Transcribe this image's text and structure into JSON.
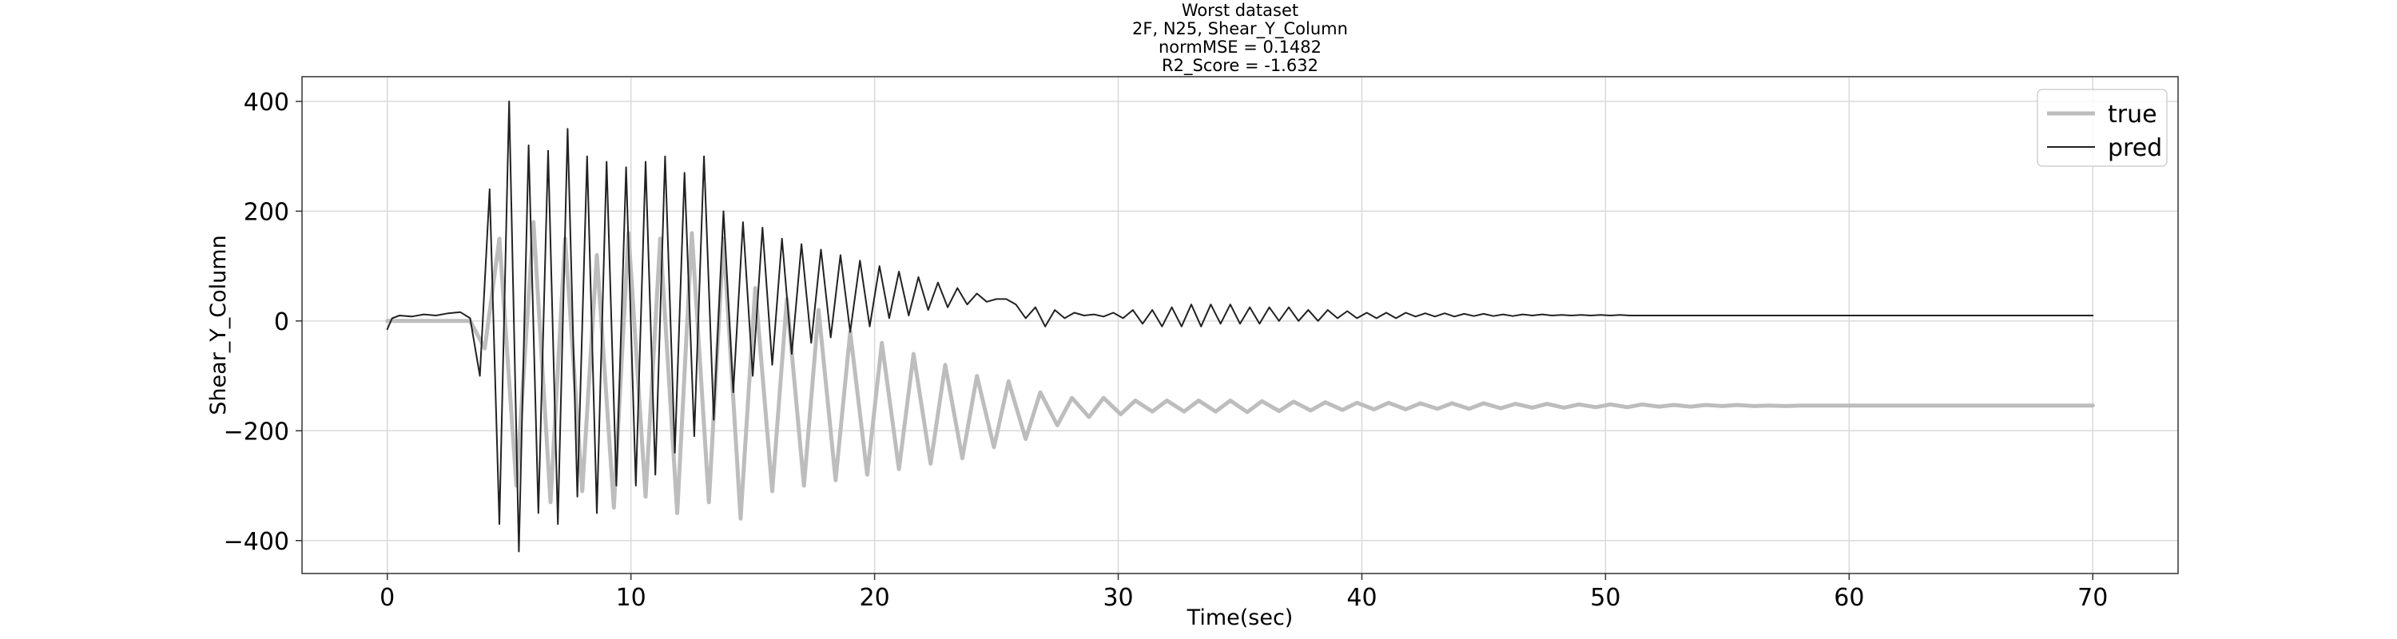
{
  "chart_data": {
    "type": "line",
    "title_lines": [
      "Worst dataset",
      "2F, N25, Shear_Y_Column",
      "normMSE = 0.1482",
      "R2_Score = -1.632"
    ],
    "xlabel": "Time(sec)",
    "ylabel": "Shear_Y_Column",
    "xlim": [
      -3.5,
      73.5
    ],
    "ylim": [
      -460,
      445
    ],
    "xticks": [
      0,
      10,
      20,
      30,
      40,
      50,
      60,
      70
    ],
    "yticks": [
      -400,
      -200,
      0,
      200,
      400
    ],
    "ytick_labels": [
      "−400",
      "−200",
      "0",
      "200",
      "400"
    ],
    "grid": true,
    "legend_position": "top-right",
    "series": [
      {
        "name": "true",
        "color": "#bdbdbd",
        "x": [
          0,
          1,
          2,
          3,
          3.4,
          4.0,
          4.6,
          5.3,
          6.0,
          6.7,
          7.3,
          8.0,
          8.6,
          9.3,
          9.9,
          10.6,
          11.2,
          11.9,
          12.5,
          13.2,
          13.8,
          14.5,
          15.1,
          15.8,
          16.4,
          17.1,
          17.7,
          18.4,
          19.0,
          19.7,
          20.3,
          21.0,
          21.6,
          22.3,
          22.9,
          23.6,
          24.2,
          24.9,
          25.5,
          26.2,
          26.8,
          27.5,
          28.1,
          28.8,
          29.4,
          30.1,
          30.7,
          31.4,
          32.0,
          32.7,
          33.3,
          34.0,
          34.6,
          35.3,
          35.9,
          36.6,
          37.2,
          37.9,
          38.5,
          39.2,
          39.8,
          40.5,
          41.1,
          41.8,
          42.4,
          43.1,
          43.7,
          44.4,
          45.0,
          45.7,
          46.3,
          47.0,
          47.6,
          48.3,
          48.9,
          49.6,
          50.2,
          50.9,
          51.5,
          52.2,
          52.8,
          53.5,
          54.1,
          54.8,
          55.4,
          56.1,
          56.7,
          57.4,
          58.0,
          60,
          65,
          70
        ],
        "y": [
          0,
          0,
          0,
          0,
          0,
          -50,
          150,
          -300,
          180,
          -330,
          150,
          -310,
          120,
          -340,
          160,
          -320,
          150,
          -350,
          160,
          -330,
          150,
          -360,
          60,
          -310,
          40,
          -300,
          20,
          -290,
          -20,
          -280,
          -40,
          -270,
          -60,
          -260,
          -80,
          -250,
          -100,
          -230,
          -110,
          -215,
          -130,
          -190,
          -140,
          -175,
          -140,
          -170,
          -145,
          -165,
          -145,
          -165,
          -145,
          -165,
          -145,
          -166,
          -146,
          -164,
          -147,
          -163,
          -148,
          -162,
          -149,
          -161,
          -149,
          -161,
          -150,
          -160,
          -150,
          -160,
          -150,
          -159,
          -151,
          -158,
          -151,
          -158,
          -152,
          -157,
          -152,
          -157,
          -152,
          -156,
          -153,
          -156,
          -153,
          -155,
          -153,
          -155,
          -154,
          -155,
          -154,
          -154,
          -154,
          -154
        ]
      },
      {
        "name": "pred",
        "color": "#222222",
        "x": [
          0,
          0.2,
          0.5,
          1.0,
          1.5,
          2.0,
          2.5,
          3.0,
          3.4,
          3.8,
          4.2,
          4.6,
          5.0,
          5.4,
          5.8,
          6.2,
          6.6,
          7.0,
          7.4,
          7.8,
          8.2,
          8.6,
          9.0,
          9.4,
          9.8,
          10.2,
          10.6,
          11.0,
          11.4,
          11.8,
          12.2,
          12.6,
          13.0,
          13.4,
          13.8,
          14.2,
          14.6,
          15.0,
          15.4,
          15.8,
          16.2,
          16.6,
          17.0,
          17.4,
          17.8,
          18.2,
          18.6,
          19.0,
          19.4,
          19.8,
          20.2,
          20.6,
          21.0,
          21.4,
          21.8,
          22.2,
          22.6,
          23.0,
          23.4,
          23.8,
          24.2,
          24.6,
          25.0,
          25.4,
          25.8,
          26.2,
          26.6,
          27.0,
          27.4,
          27.8,
          28.2,
          28.6,
          29.0,
          29.4,
          29.8,
          30.2,
          30.6,
          31.0,
          31.4,
          31.8,
          32.2,
          32.6,
          33.0,
          33.4,
          33.8,
          34.2,
          34.6,
          35.0,
          35.4,
          35.8,
          36.2,
          36.6,
          37.0,
          37.4,
          37.8,
          38.2,
          38.6,
          39.0,
          39.4,
          39.8,
          40.2,
          40.6,
          41.0,
          41.4,
          41.8,
          42.2,
          42.6,
          43.0,
          43.4,
          43.8,
          44.2,
          44.6,
          45.0,
          45.4,
          45.8,
          46.2,
          46.6,
          47.0,
          47.4,
          47.8,
          48.2,
          48.6,
          49.0,
          49.4,
          49.8,
          50.2,
          50.6,
          51.0,
          51.5,
          52.0,
          55,
          60,
          65,
          70
        ],
        "y": [
          -15,
          5,
          10,
          8,
          12,
          10,
          14,
          16,
          5,
          -100,
          240,
          -370,
          400,
          -420,
          320,
          -350,
          310,
          -370,
          350,
          -320,
          300,
          -350,
          290,
          -300,
          280,
          -300,
          290,
          -280,
          300,
          -240,
          270,
          -210,
          300,
          -180,
          200,
          -130,
          180,
          -100,
          170,
          -80,
          150,
          -60,
          140,
          -40,
          130,
          -30,
          120,
          -20,
          110,
          -10,
          100,
          5,
          90,
          10,
          80,
          20,
          70,
          25,
          60,
          30,
          50,
          35,
          40,
          40,
          30,
          5,
          25,
          -10,
          20,
          5,
          15,
          10,
          12,
          8,
          15,
          5,
          20,
          -5,
          20,
          -10,
          25,
          -10,
          30,
          -10,
          30,
          -5,
          30,
          -5,
          25,
          -5,
          25,
          0,
          25,
          0,
          20,
          0,
          20,
          5,
          18,
          5,
          15,
          5,
          15,
          5,
          15,
          8,
          14,
          8,
          14,
          8,
          13,
          9,
          13,
          9,
          12,
          9,
          12,
          10,
          12,
          10,
          11,
          10,
          11,
          10,
          11,
          10,
          11,
          10,
          10,
          10,
          10,
          10,
          10,
          10
        ]
      }
    ]
  }
}
